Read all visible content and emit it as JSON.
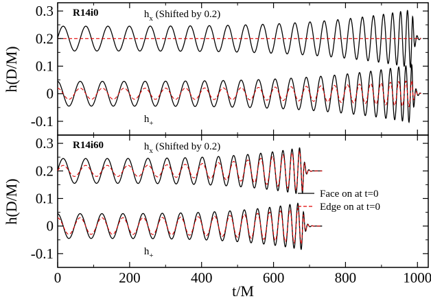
{
  "chart_data": [
    {
      "type": "line",
      "title": "R14i0",
      "xlabel": "t/M",
      "ylabel": "h(D/M)",
      "xlim": [
        0,
        1030
      ],
      "ylim": [
        -0.15,
        0.33
      ],
      "xticks": [
        "0",
        "200",
        "400",
        "600",
        "800",
        "1000"
      ],
      "yticks": [
        "-0.1",
        "0",
        "0.1",
        "0.2",
        "0.3"
      ],
      "annotations": [
        {
          "base": "h",
          "sub": "x",
          "suffix": " (Shifted by 0.2)",
          "x": 450,
          "y": 0.29
        },
        {
          "base": "h",
          "sub": "+",
          "suffix": "",
          "x": 450,
          "y": -0.09
        }
      ],
      "series": [
        {
          "component": "hx",
          "offset": 0.2,
          "color": "#000000",
          "dash": "solid",
          "amp_start": 0.045,
          "amp_peak": 0.11,
          "period_start": 64,
          "t_merger": 985,
          "t_end": 1010
        },
        {
          "component": "hx",
          "offset": 0.2,
          "color": "#e00000",
          "dash": "dashed",
          "amp_start": 0.0,
          "amp_peak": 0.0,
          "period_start": 64,
          "t_merger": 985,
          "t_end": 1010
        },
        {
          "component": "h+",
          "offset": 0.0,
          "color": "#000000",
          "dash": "solid",
          "amp_start": 0.045,
          "amp_peak": 0.11,
          "period_start": 64,
          "t_merger": 985,
          "t_end": 1010
        },
        {
          "component": "h+",
          "offset": 0.0,
          "color": "#e00000",
          "dash": "dashed",
          "amp_start": 0.02,
          "amp_peak": 0.05,
          "period_start": 64,
          "t_merger": 985,
          "t_end": 1010
        }
      ]
    },
    {
      "type": "line",
      "title": "R14i60",
      "xlabel": "t/M",
      "ylabel": "h(D/M)",
      "xlim": [
        0,
        1030
      ],
      "ylim": [
        -0.15,
        0.33
      ],
      "xticks": [
        "0",
        "200",
        "400",
        "600",
        "800",
        "1000"
      ],
      "yticks": [
        "-0.1",
        "0",
        "0.1",
        "0.2",
        "0.3"
      ],
      "annotations": [
        {
          "base": "h",
          "sub": "x",
          "suffix": " (Shifted by 0.2)",
          "x": 450,
          "y": 0.29
        },
        {
          "base": "h",
          "sub": "+",
          "suffix": "",
          "x": 450,
          "y": -0.09
        }
      ],
      "legend": {
        "placement": "right",
        "entries": [
          {
            "label": "Face on at t=0",
            "color": "#000000",
            "dash": "solid"
          },
          {
            "label": "Edge on at t=0",
            "color": "#e00000",
            "dash": "dashed"
          }
        ]
      },
      "series": [
        {
          "component": "hx",
          "offset": 0.2,
          "color": "#000000",
          "dash": "solid",
          "amp_start": 0.045,
          "amp_peak": 0.09,
          "period_start": 64,
          "t_merger": 680,
          "t_end": 735
        },
        {
          "component": "hx",
          "offset": 0.2,
          "color": "#e00000",
          "dash": "dashed",
          "amp_start": 0.02,
          "amp_peak": 0.08,
          "period_start": 64,
          "t_merger": 680,
          "t_end": 735
        },
        {
          "component": "h+",
          "offset": 0.0,
          "color": "#000000",
          "dash": "solid",
          "amp_start": 0.045,
          "amp_peak": 0.09,
          "period_start": 64,
          "t_merger": 680,
          "t_end": 735
        },
        {
          "component": "h+",
          "offset": 0.0,
          "color": "#e00000",
          "dash": "dashed",
          "amp_start": 0.03,
          "amp_peak": 0.07,
          "period_start": 64,
          "t_merger": 680,
          "t_end": 735
        }
      ]
    }
  ]
}
